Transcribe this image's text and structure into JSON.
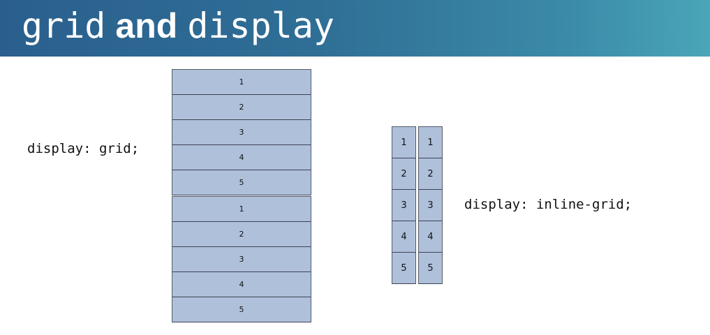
{
  "header": {
    "title_part1": "grid",
    "title_part2": "and",
    "title_part3": "display"
  },
  "labels": {
    "grid": "display: grid;",
    "inline_grid": "display: inline-grid;"
  },
  "grid_blocks": [
    {
      "items": [
        "1",
        "2",
        "3",
        "4",
        "5"
      ]
    },
    {
      "items": [
        "1",
        "2",
        "3",
        "4",
        "5"
      ]
    }
  ],
  "inline_grids": [
    {
      "items": [
        "1",
        "2",
        "3",
        "4",
        "5"
      ]
    },
    {
      "items": [
        "1",
        "2",
        "3",
        "4",
        "5"
      ]
    }
  ],
  "colors": {
    "header_start": "#2a5f8d",
    "header_end": "#4aa6b8",
    "cell_fill": "#afc0db",
    "cell_border": "#3c4250"
  }
}
